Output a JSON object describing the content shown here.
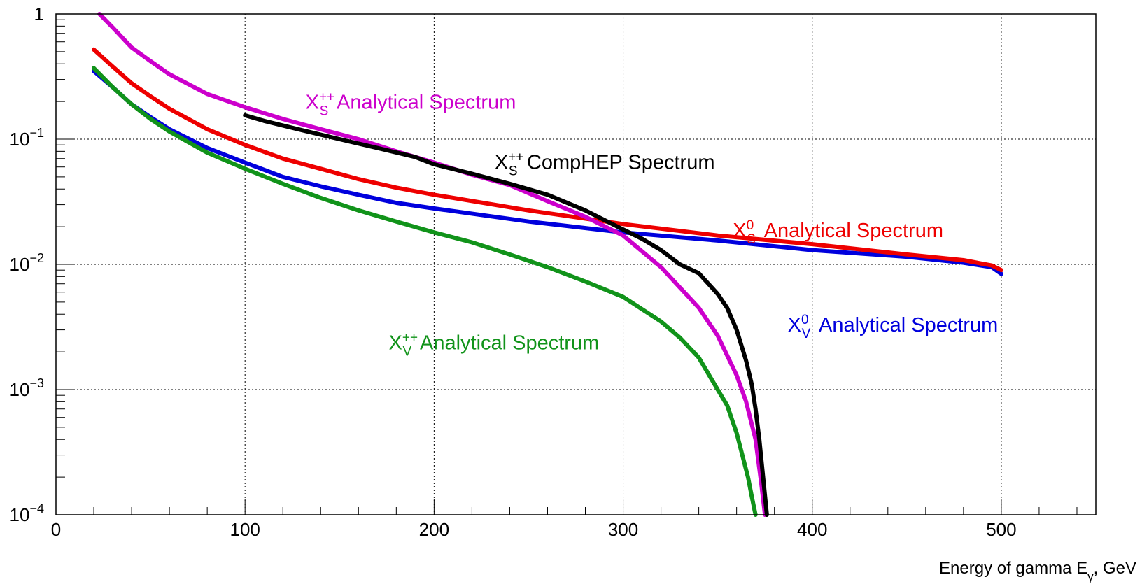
{
  "chart_data": {
    "type": "line",
    "title": "",
    "xlabel": {
      "prefix": "Energy of gamma E",
      "sub": "γ",
      "suffix": ", GeV"
    },
    "ylabel": "",
    "xlim": [
      0,
      550
    ],
    "ylim": [
      0.0001,
      1
    ],
    "yscale": "log",
    "grid": true,
    "x_ticks": [
      0,
      100,
      200,
      300,
      400,
      500
    ],
    "y_ticks": [
      {
        "value": 1,
        "base": "1",
        "exp": ""
      },
      {
        "value": 0.1,
        "base": "10",
        "exp": "−1"
      },
      {
        "value": 0.01,
        "base": "10",
        "exp": "−2"
      },
      {
        "value": 0.001,
        "base": "10",
        "exp": "−3"
      },
      {
        "value": 0.0001,
        "base": "10",
        "exp": "−4"
      }
    ],
    "series": [
      {
        "name": "X_S^++ Analytical Spectrum",
        "label": {
          "main": "X",
          "sub": "S",
          "sup": "++",
          "rest": " Analytical Spectrum"
        },
        "color": "#cc00cc",
        "x": [
          23,
          30,
          40,
          50,
          60,
          80,
          100,
          120,
          140,
          160,
          180,
          200,
          220,
          240,
          260,
          280,
          300,
          320,
          340,
          350,
          360,
          365,
          370,
          373,
          375
        ],
        "y": [
          1.0,
          0.78,
          0.54,
          0.42,
          0.33,
          0.23,
          0.18,
          0.145,
          0.12,
          0.1,
          0.08,
          0.065,
          0.052,
          0.043,
          0.032,
          0.024,
          0.017,
          0.0095,
          0.0045,
          0.0027,
          0.0013,
          0.0008,
          0.0004,
          0.00018,
          0.0001
        ]
      },
      {
        "name": "X_S^++ CompHEP Spectrum",
        "label": {
          "main": "X",
          "sub": "S",
          "sup": "++",
          "rest": " CompHEP Spectrum"
        },
        "color": "#000000",
        "x": [
          100,
          110,
          130,
          150,
          170,
          190,
          200,
          220,
          240,
          260,
          280,
          300,
          310,
          320,
          330,
          340,
          350,
          355,
          360,
          365,
          368,
          370,
          372,
          374,
          376
        ],
        "y": [
          0.155,
          0.14,
          0.118,
          0.1,
          0.085,
          0.072,
          0.063,
          0.053,
          0.044,
          0.036,
          0.027,
          0.019,
          0.016,
          0.013,
          0.01,
          0.0085,
          0.0058,
          0.0045,
          0.003,
          0.0017,
          0.0011,
          0.0007,
          0.0004,
          0.0002,
          0.0001
        ]
      },
      {
        "name": "X_S^0 Analytical Spectrum",
        "label": {
          "main": "X",
          "sub": "S",
          "sup": "0",
          "rest": " Analytical Spectrum"
        },
        "color": "#ee0000",
        "x": [
          20,
          30,
          40,
          50,
          60,
          80,
          100,
          120,
          140,
          160,
          180,
          200,
          250,
          300,
          350,
          400,
          450,
          480,
          495,
          500
        ],
        "y": [
          0.52,
          0.38,
          0.28,
          0.22,
          0.175,
          0.12,
          0.09,
          0.07,
          0.058,
          0.048,
          0.041,
          0.036,
          0.027,
          0.021,
          0.017,
          0.0145,
          0.012,
          0.0108,
          0.0098,
          0.009
        ]
      },
      {
        "name": "X_V^0 Analytical Spectrum",
        "label": {
          "main": "X",
          "sub": "V",
          "sup": "0",
          "rest": " Analytical Spectrum"
        },
        "color": "#0000dd",
        "x": [
          20,
          30,
          40,
          50,
          60,
          80,
          100,
          120,
          140,
          160,
          180,
          200,
          250,
          300,
          350,
          400,
          450,
          480,
          495,
          500
        ],
        "y": [
          0.35,
          0.26,
          0.19,
          0.15,
          0.12,
          0.085,
          0.065,
          0.05,
          0.042,
          0.036,
          0.031,
          0.028,
          0.022,
          0.018,
          0.0155,
          0.013,
          0.0115,
          0.0103,
          0.0095,
          0.0084
        ]
      },
      {
        "name": "X_V^++ Analytical Spectrum",
        "label": {
          "main": "X",
          "sub": "V",
          "sup": "++",
          "rest": " Analytical Spectrum"
        },
        "color": "#11931a",
        "x": [
          20,
          30,
          40,
          50,
          60,
          80,
          100,
          120,
          140,
          160,
          180,
          200,
          220,
          240,
          260,
          280,
          300,
          320,
          330,
          340,
          350,
          355,
          360,
          363,
          366,
          368,
          370
        ],
        "y": [
          0.37,
          0.26,
          0.19,
          0.145,
          0.115,
          0.078,
          0.058,
          0.044,
          0.034,
          0.027,
          0.022,
          0.018,
          0.015,
          0.012,
          0.0095,
          0.0073,
          0.0055,
          0.0035,
          0.0026,
          0.0018,
          0.001,
          0.00075,
          0.00045,
          0.0003,
          0.0002,
          0.00014,
          0.0001
        ]
      }
    ]
  }
}
